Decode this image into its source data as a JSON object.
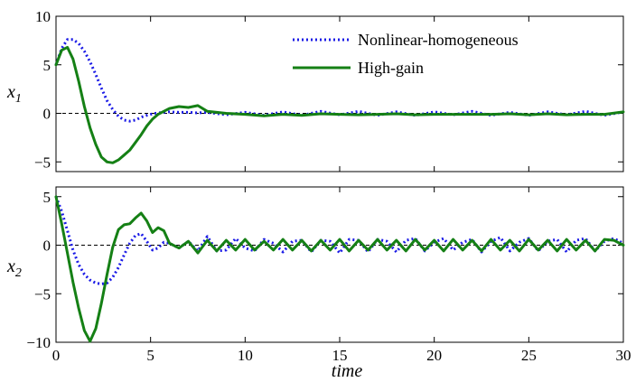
{
  "chart_data": [
    {
      "type": "line",
      "ylabel": "x",
      "ylabel_sub": "1",
      "xlim": [
        0,
        30
      ],
      "ylim": [
        -6,
        10
      ],
      "yticks": [
        10,
        5,
        0,
        -5
      ],
      "ytick_labels": [
        "10",
        "5",
        "0",
        "−5"
      ],
      "reference_line": {
        "y": 0,
        "style": "dashed",
        "color": "#000000"
      },
      "legend": {
        "position": "top-right",
        "entries": [
          "Nonlinear-homogeneous",
          "High-gain"
        ]
      },
      "series": [
        {
          "name": "Nonlinear-homogeneous",
          "color": "#1a1ae6",
          "style": "dotted",
          "x": [
            0,
            0.3,
            0.6,
            0.9,
            1.2,
            1.5,
            1.8,
            2.1,
            2.4,
            2.7,
            3.0,
            3.3,
            3.6,
            3.9,
            4.2,
            4.5,
            4.8,
            5.1,
            5.4,
            5.7,
            6.0,
            6.5,
            7.0,
            7.5,
            8.0,
            9,
            10,
            11,
            12,
            13,
            14,
            15,
            16,
            17,
            18,
            19,
            20,
            21,
            22,
            23,
            24,
            25,
            26,
            27,
            28,
            29,
            30
          ],
          "y": [
            5.0,
            6.7,
            7.6,
            7.6,
            7.2,
            6.4,
            5.3,
            4.0,
            2.6,
            1.3,
            0.4,
            -0.3,
            -0.7,
            -0.8,
            -0.7,
            -0.4,
            -0.2,
            -0.05,
            0.05,
            0.1,
            0.15,
            0.1,
            0.1,
            0.05,
            0.1,
            -0.15,
            0.1,
            -0.2,
            0.15,
            -0.2,
            0.2,
            -0.15,
            0.2,
            -0.2,
            0.15,
            -0.2,
            0.15,
            -0.15,
            0.2,
            -0.2,
            0.1,
            -0.2,
            0.15,
            -0.15,
            0.2,
            -0.2,
            0.15
          ]
        },
        {
          "name": "High-gain",
          "color": "#158015",
          "style": "solid",
          "x": [
            0,
            0.3,
            0.6,
            0.9,
            1.2,
            1.5,
            1.8,
            2.1,
            2.4,
            2.7,
            3.0,
            3.3,
            3.6,
            3.9,
            4.2,
            4.5,
            4.8,
            5.1,
            5.4,
            5.7,
            6.0,
            6.5,
            7.0,
            7.5,
            8.0,
            9,
            10,
            11,
            12,
            13,
            14,
            15,
            16,
            17,
            18,
            19,
            20,
            21,
            22,
            23,
            24,
            25,
            26,
            27,
            28,
            29,
            30
          ],
          "y": [
            5.0,
            6.5,
            6.8,
            5.6,
            3.3,
            0.7,
            -1.5,
            -3.2,
            -4.5,
            -5.0,
            -5.1,
            -4.8,
            -4.3,
            -3.8,
            -3.0,
            -2.2,
            -1.3,
            -0.6,
            -0.1,
            0.2,
            0.5,
            0.7,
            0.6,
            0.8,
            0.2,
            0.0,
            -0.1,
            -0.25,
            -0.1,
            -0.2,
            -0.05,
            -0.1,
            -0.15,
            -0.1,
            -0.05,
            -0.15,
            -0.1,
            -0.1,
            -0.1,
            -0.1,
            -0.05,
            -0.15,
            -0.05,
            -0.15,
            -0.1,
            -0.1,
            0.15
          ]
        }
      ]
    },
    {
      "type": "line",
      "ylabel": "x",
      "ylabel_sub": "2",
      "xlabel": "time",
      "xlim": [
        0,
        30
      ],
      "ylim": [
        -10,
        6
      ],
      "yticks": [
        5,
        0,
        -5,
        -10
      ],
      "ytick_labels": [
        "5",
        "0",
        "−5",
        "−10"
      ],
      "xticks": [
        0,
        5,
        10,
        15,
        20,
        25,
        30
      ],
      "xtick_labels": [
        "0",
        "5",
        "10",
        "15",
        "20",
        "25",
        "30"
      ],
      "reference_line": {
        "y": 0,
        "style": "dashed",
        "color": "#000000"
      },
      "series": [
        {
          "name": "Nonlinear-homogeneous",
          "color": "#1a1ae6",
          "style": "dotted",
          "x": [
            0,
            0.3,
            0.6,
            0.9,
            1.2,
            1.5,
            1.8,
            2.1,
            2.4,
            2.7,
            3.0,
            3.3,
            3.6,
            3.9,
            4.2,
            4.5,
            4.8,
            5.1,
            5.4,
            5.7,
            6.0,
            6.5,
            7.0,
            7.5,
            8.0,
            8.5,
            9.0,
            9.5,
            10.0,
            10.5,
            11.0,
            11.5,
            12.0,
            12.5,
            13.0,
            13.5,
            14.0,
            14.5,
            15.0,
            15.5,
            16.0,
            16.5,
            17.0,
            17.5,
            18.0,
            18.5,
            19.0,
            19.5,
            20.0,
            20.5,
            21.0,
            21.5,
            22.0,
            22.5,
            23.0,
            23.5,
            24.0,
            24.5,
            25.0,
            25.5,
            26.0,
            26.5,
            27.0,
            27.5,
            28.0,
            28.5,
            29.0,
            29.5,
            30.0
          ],
          "y": [
            5.0,
            3.5,
            1.5,
            -0.5,
            -2.0,
            -3.0,
            -3.6,
            -3.9,
            -4.0,
            -3.9,
            -3.3,
            -2.3,
            -1.0,
            0.2,
            1.0,
            1.2,
            0.4,
            -0.5,
            -0.3,
            0.3,
            0.2,
            -0.3,
            0.4,
            -0.6,
            0.9,
            -0.6,
            -0.5,
            0.7,
            -0.3,
            -0.6,
            0.6,
            0.2,
            -0.7,
            0.4,
            0.5,
            -0.7,
            0.5,
            0.4,
            -0.8,
            0.6,
            0.5,
            -0.7,
            0.6,
            0.4,
            -0.7,
            0.5,
            0.7,
            -0.6,
            0.3,
            0.7,
            -0.5,
            0.3,
            0.6,
            -0.7,
            0.4,
            0.8,
            -0.6,
            0.3,
            0.7,
            -0.6,
            0.4,
            0.6,
            -0.7,
            0.5,
            0.7,
            -0.6,
            0.4,
            0.7,
            0.2
          ]
        },
        {
          "name": "High-gain",
          "color": "#158015",
          "style": "solid",
          "x": [
            0,
            0.3,
            0.6,
            0.9,
            1.2,
            1.5,
            1.8,
            2.1,
            2.4,
            2.7,
            3.0,
            3.3,
            3.6,
            3.9,
            4.2,
            4.5,
            4.8,
            5.1,
            5.4,
            5.7,
            6.0,
            6.5,
            7.0,
            7.5,
            8.0,
            8.5,
            9.0,
            9.5,
            10.0,
            10.5,
            11.0,
            11.5,
            12.0,
            12.5,
            13.0,
            13.5,
            14.0,
            14.5,
            15.0,
            15.5,
            16.0,
            16.5,
            17.0,
            17.5,
            18.0,
            18.5,
            19.0,
            19.5,
            20.0,
            20.5,
            21.0,
            21.5,
            22.0,
            22.5,
            23.0,
            23.5,
            24.0,
            24.5,
            25.0,
            25.5,
            26.0,
            26.5,
            27.0,
            27.5,
            28.0,
            28.5,
            29.0,
            29.5,
            30.0
          ],
          "y": [
            5.0,
            2.2,
            -0.8,
            -3.8,
            -6.5,
            -8.8,
            -9.9,
            -8.6,
            -6.0,
            -3.0,
            -0.2,
            1.6,
            2.1,
            2.2,
            2.8,
            3.3,
            2.5,
            1.3,
            1.8,
            1.5,
            0.2,
            -0.3,
            0.4,
            -0.8,
            0.5,
            -0.6,
            0.5,
            -0.5,
            0.6,
            -0.5,
            0.4,
            -0.5,
            0.6,
            -0.5,
            0.5,
            -0.6,
            0.5,
            -0.5,
            0.6,
            -0.6,
            0.5,
            -0.5,
            0.6,
            -0.5,
            0.5,
            -0.6,
            0.6,
            -0.5,
            0.5,
            -0.6,
            0.6,
            -0.5,
            0.5,
            -0.6,
            0.6,
            -0.5,
            0.5,
            -0.6,
            0.6,
            -0.5,
            0.5,
            -0.6,
            0.6,
            -0.5,
            0.5,
            -0.6,
            0.6,
            0.5,
            0.0
          ]
        }
      ]
    }
  ]
}
